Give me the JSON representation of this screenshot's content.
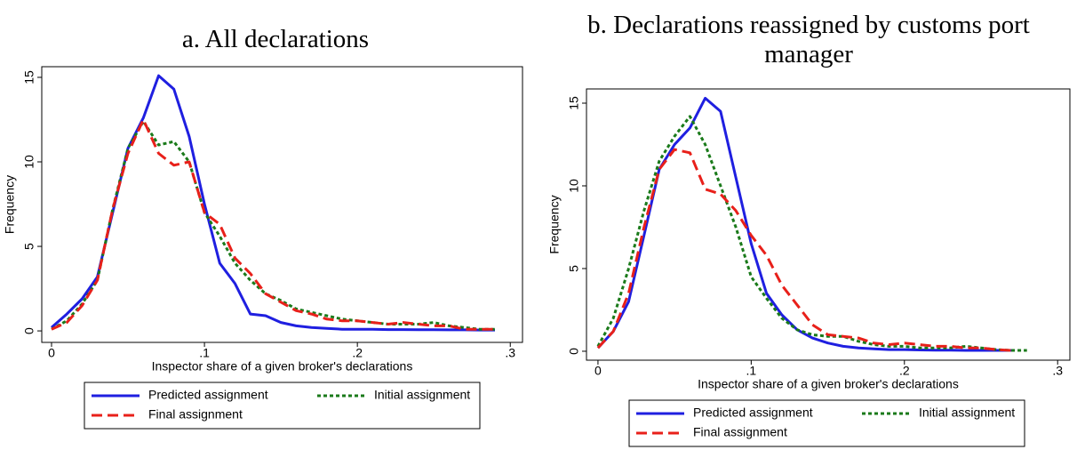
{
  "chart_data": [
    {
      "type": "line",
      "title": "a. All declarations",
      "xlabel": "Inspector share of a given broker's declarations",
      "ylabel": "Frequency",
      "x": [
        0,
        0.01,
        0.02,
        0.03,
        0.04,
        0.05,
        0.06,
        0.07,
        0.08,
        0.09,
        0.1,
        0.11,
        0.12,
        0.13,
        0.14,
        0.15,
        0.16,
        0.17,
        0.18,
        0.19,
        0.2,
        0.21,
        0.22,
        0.23,
        0.24,
        0.25,
        0.26,
        0.27,
        0.28,
        0.29
      ],
      "series": [
        {
          "name": "Predicted assignment",
          "color": "#1f1fe0",
          "style": "solid",
          "values": [
            0.2,
            1.0,
            1.9,
            3.2,
            7.0,
            10.8,
            12.6,
            15.1,
            14.3,
            11.5,
            7.5,
            4.0,
            2.8,
            1.0,
            0.9,
            0.5,
            0.3,
            0.2,
            0.15,
            0.1,
            0.1,
            0.1,
            0.08,
            0.08,
            0.07,
            0.07,
            0.06,
            0.06,
            0.05,
            0.05
          ]
        },
        {
          "name": "Initial assignment",
          "color": "#1a7a1a",
          "style": "dotted",
          "values": [
            0.1,
            0.6,
            1.6,
            3.0,
            7.2,
            10.8,
            12.4,
            11.0,
            11.2,
            10.0,
            7.0,
            5.6,
            4.0,
            3.0,
            2.2,
            1.8,
            1.3,
            1.1,
            0.9,
            0.7,
            0.6,
            0.5,
            0.4,
            0.4,
            0.4,
            0.5,
            0.3,
            0.2,
            0.1,
            0.1
          ]
        },
        {
          "name": "Final assignment",
          "color": "#e8201a",
          "style": "dashed",
          "values": [
            0.1,
            0.5,
            1.5,
            3.0,
            7.2,
            10.5,
            12.5,
            10.5,
            9.8,
            10.0,
            7.0,
            6.3,
            4.3,
            3.4,
            2.2,
            1.7,
            1.2,
            1.0,
            0.7,
            0.6,
            0.6,
            0.5,
            0.4,
            0.5,
            0.4,
            0.3,
            0.3,
            0.1,
            0.1,
            0.1
          ]
        }
      ],
      "xlim": [
        -0.0064,
        0.308
      ],
      "ylim": [
        -0.68,
        15.63
      ],
      "xticks": [
        0,
        {
          "value": 0.1,
          "label": ".1"
        },
        {
          "value": 0.2,
          "label": ".2"
        },
        {
          "value": 0.3,
          "label": ".3"
        }
      ],
      "yticks": [
        0,
        5,
        10,
        15
      ],
      "legend": "bottom"
    },
    {
      "type": "line",
      "title": "b. Declarations reassigned by customs port manager",
      "xlabel": "Inspector share of a given broker's declarations",
      "ylabel": "Frequency",
      "x": [
        0,
        0.01,
        0.02,
        0.03,
        0.04,
        0.05,
        0.06,
        0.07,
        0.08,
        0.09,
        0.1,
        0.11,
        0.12,
        0.13,
        0.14,
        0.15,
        0.16,
        0.17,
        0.18,
        0.19,
        0.2,
        0.21,
        0.22,
        0.23,
        0.24,
        0.25,
        0.26,
        0.27,
        0.28,
        0.29
      ],
      "series": [
        {
          "name": "Predicted assignment",
          "color": "#1f1fe0",
          "style": "solid",
          "values": [
            0.2,
            1.2,
            3.0,
            7.0,
            11.0,
            12.5,
            13.5,
            15.3,
            14.5,
            10.5,
            6.5,
            3.5,
            2.2,
            1.3,
            0.8,
            0.5,
            0.3,
            0.2,
            0.15,
            0.1,
            0.1,
            0.08,
            0.07,
            0.06,
            0.05,
            0.05,
            0.05,
            0.05,
            null,
            null
          ]
        },
        {
          "name": "Initial assignment",
          "color": "#1a7a1a",
          "style": "dotted",
          "values": [
            0.3,
            2.0,
            5.0,
            8.5,
            11.5,
            13.0,
            14.2,
            12.5,
            10.0,
            7.5,
            4.5,
            3.2,
            2.0,
            1.3,
            1.0,
            0.9,
            0.9,
            0.6,
            0.4,
            0.3,
            0.3,
            0.2,
            0.2,
            0.2,
            0.3,
            0.2,
            0.1,
            0.05,
            0.05,
            null
          ]
        },
        {
          "name": "Final assignment",
          "color": "#e8201a",
          "style": "dashed",
          "values": [
            0.2,
            1.2,
            3.5,
            7.5,
            11.0,
            12.2,
            12.0,
            9.8,
            9.5,
            8.5,
            7.0,
            5.8,
            4.0,
            2.8,
            1.6,
            1.0,
            0.9,
            0.8,
            0.5,
            0.4,
            0.5,
            0.4,
            0.3,
            0.3,
            0.2,
            0.2,
            0.1,
            0.05,
            null,
            null
          ]
        }
      ],
      "xlim": [
        -0.0075,
        0.308
      ],
      "ylim": [
        -0.54,
        15.86
      ],
      "xticks": [
        0,
        {
          "value": 0.1,
          "label": ".1"
        },
        {
          "value": 0.2,
          "label": ".2"
        },
        {
          "value": 0.3,
          "label": ".3"
        }
      ],
      "yticks": [
        0,
        5,
        10,
        15
      ],
      "legend": "bottom"
    }
  ]
}
